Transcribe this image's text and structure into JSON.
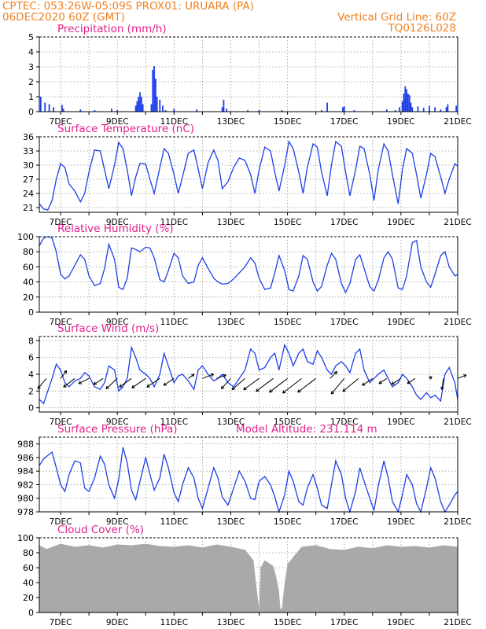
{
  "header": {
    "line1_left": "CPTEC:   053:26W-05:09S   PROX01: URUARA (PA)",
    "line2_left": "06DEC2020 60Z (GMT)",
    "line2_right": "Vertical Grid Line: 60Z",
    "line3_right": "TQ0126L028"
  },
  "colors": {
    "header": "#f08020",
    "title": "#e0208c",
    "series": "#1f3fe8",
    "cloud": "#a9a9a9",
    "grid": "#9a9a9a"
  },
  "x_tick_labels": [
    "7DEC",
    "9DEC",
    "11DEC",
    "13DEC",
    "15DEC",
    "17DEC",
    "19DEC",
    "21DEC"
  ],
  "chart_data": [
    {
      "type": "bar",
      "title": "Precipitation (mm/h)",
      "ylim": [
        0,
        5
      ],
      "yticks": [
        0,
        1,
        2,
        3,
        4,
        5
      ],
      "grid": true,
      "xlim_days": [
        6.25,
        21
      ],
      "x": [
        6.3,
        6.45,
        6.6,
        6.75,
        7.05,
        7.1,
        7.7,
        8.2,
        8.8,
        9.0,
        9.65,
        9.7,
        9.75,
        9.8,
        9.85,
        9.9,
        10.2,
        10.25,
        10.3,
        10.35,
        10.4,
        10.5,
        10.6,
        10.7,
        11.0,
        11.8,
        12.7,
        12.75,
        12.85,
        13.6,
        14.0,
        14.8,
        16.2,
        16.4,
        16.95,
        17.0,
        17.35,
        18.5,
        18.8,
        18.95,
        19.05,
        19.1,
        19.15,
        19.2,
        19.25,
        19.3,
        19.35,
        19.4,
        19.6,
        19.8,
        20.0,
        20.2,
        20.4,
        20.6,
        20.65,
        20.95
      ],
      "values": [
        1.0,
        0.6,
        0.5,
        0.3,
        0.45,
        0.2,
        0.15,
        0.1,
        0.2,
        0.1,
        0.4,
        0.7,
        1.0,
        1.3,
        1.0,
        0.5,
        0.5,
        2.8,
        3.05,
        2.2,
        1.0,
        0.8,
        0.4,
        0.1,
        0.2,
        0.15,
        0.3,
        0.8,
        0.2,
        0.1,
        0.1,
        0.1,
        0.1,
        0.6,
        0.3,
        0.35,
        0.1,
        0.15,
        0.1,
        0.3,
        0.7,
        1.2,
        1.7,
        1.5,
        1.2,
        1.1,
        0.6,
        0.3,
        0.35,
        0.25,
        0.4,
        0.3,
        0.15,
        0.3,
        0.5,
        0.4
      ]
    },
    {
      "type": "line",
      "title": "Surface Temperature (nC)",
      "ylim": [
        20,
        36
      ],
      "yticks": [
        21,
        24,
        27,
        30,
        33,
        36
      ],
      "grid": true,
      "x": [
        6.25,
        6.4,
        6.55,
        6.7,
        6.85,
        7.0,
        7.15,
        7.3,
        7.5,
        7.7,
        7.85,
        8.0,
        8.2,
        8.4,
        8.55,
        8.7,
        8.9,
        9.05,
        9.2,
        9.35,
        9.5,
        9.65,
        9.8,
        10.0,
        10.15,
        10.3,
        10.5,
        10.65,
        10.8,
        11.0,
        11.15,
        11.3,
        11.5,
        11.7,
        11.85,
        12.0,
        12.2,
        12.4,
        12.55,
        12.7,
        12.9,
        13.1,
        13.3,
        13.5,
        13.7,
        13.85,
        14.0,
        14.2,
        14.4,
        14.55,
        14.7,
        14.9,
        15.05,
        15.2,
        15.4,
        15.55,
        15.7,
        15.9,
        16.05,
        16.2,
        16.4,
        16.55,
        16.7,
        16.9,
        17.05,
        17.2,
        17.4,
        17.55,
        17.7,
        17.9,
        18.05,
        18.2,
        18.4,
        18.55,
        18.7,
        18.9,
        19.05,
        19.2,
        19.4,
        19.55,
        19.7,
        19.9,
        20.05,
        20.2,
        20.4,
        20.55,
        20.7,
        20.9,
        21.0
      ],
      "values": [
        21.8,
        20.7,
        20.5,
        22.5,
        27,
        30.3,
        29.5,
        26,
        24.5,
        22.2,
        24,
        28.5,
        33.2,
        33,
        29,
        25,
        30,
        34.8,
        33.5,
        29,
        23.5,
        27.5,
        30.4,
        30.2,
        27,
        24,
        29.5,
        33.5,
        32.5,
        28,
        24,
        27.5,
        32.5,
        33.2,
        29.2,
        25,
        30.5,
        33.2,
        31,
        25,
        26.5,
        29.5,
        31.5,
        31,
        28,
        24,
        29,
        33.8,
        33,
        28.5,
        24.5,
        30,
        35,
        33.5,
        28.5,
        24,
        29.5,
        34.5,
        33.8,
        28.5,
        23.5,
        30,
        35,
        34,
        28.5,
        23.5,
        29,
        34,
        33.5,
        28,
        22.5,
        29,
        34.5,
        33,
        28,
        21.8,
        29,
        33.5,
        32.5,
        28,
        23,
        28,
        32.5,
        31.8,
        27.5,
        24,
        27,
        30.3,
        29.8
      ]
    },
    {
      "type": "line",
      "title": "Relative Humidity (%)",
      "ylim": [
        0,
        100
      ],
      "yticks": [
        0,
        20,
        40,
        60,
        80,
        100
      ],
      "grid": true,
      "x": [
        6.25,
        6.4,
        6.55,
        6.7,
        6.85,
        7.0,
        7.15,
        7.3,
        7.5,
        7.7,
        7.85,
        8.0,
        8.2,
        8.4,
        8.55,
        8.7,
        8.9,
        9.05,
        9.2,
        9.35,
        9.5,
        9.65,
        9.8,
        10.0,
        10.15,
        10.3,
        10.5,
        10.65,
        10.8,
        11.0,
        11.15,
        11.3,
        11.5,
        11.7,
        11.85,
        12.0,
        12.2,
        12.4,
        12.55,
        12.7,
        12.9,
        13.1,
        13.3,
        13.5,
        13.7,
        13.85,
        14.0,
        14.2,
        14.4,
        14.55,
        14.7,
        14.9,
        15.05,
        15.2,
        15.4,
        15.55,
        15.7,
        15.9,
        16.05,
        16.2,
        16.4,
        16.55,
        16.7,
        16.9,
        17.05,
        17.2,
        17.4,
        17.55,
        17.7,
        17.9,
        18.05,
        18.2,
        18.4,
        18.55,
        18.7,
        18.9,
        19.05,
        19.2,
        19.4,
        19.55,
        19.7,
        19.9,
        20.05,
        20.2,
        20.4,
        20.55,
        20.7,
        20.9,
        21.0
      ],
      "values": [
        88,
        98,
        100,
        98,
        80,
        50,
        44,
        48,
        62,
        76,
        70,
        48,
        35,
        38,
        58,
        90,
        70,
        33,
        30,
        45,
        85,
        83,
        80,
        86,
        85,
        72,
        43,
        40,
        55,
        78,
        72,
        48,
        38,
        40,
        62,
        72,
        58,
        45,
        40,
        37,
        38,
        44,
        52,
        60,
        72,
        65,
        45,
        30,
        32,
        52,
        75,
        55,
        30,
        28,
        48,
        75,
        70,
        40,
        28,
        34,
        62,
        78,
        70,
        38,
        26,
        38,
        70,
        76,
        58,
        34,
        28,
        42,
        72,
        80,
        70,
        32,
        30,
        48,
        92,
        95,
        60,
        40,
        33,
        50,
        75,
        80,
        60,
        48,
        50
      ]
    },
    {
      "type": "line",
      "title": "Surface Wind (m/s)",
      "ylim": [
        -0.5,
        8.5
      ],
      "yticks": [
        0,
        2,
        4,
        6,
        8
      ],
      "grid": true,
      "x": [
        6.25,
        6.4,
        6.55,
        6.7,
        6.85,
        7.0,
        7.15,
        7.3,
        7.5,
        7.7,
        7.85,
        8.0,
        8.2,
        8.4,
        8.55,
        8.7,
        8.9,
        9.05,
        9.2,
        9.35,
        9.5,
        9.65,
        9.8,
        10.0,
        10.15,
        10.3,
        10.5,
        10.65,
        10.8,
        11.0,
        11.15,
        11.3,
        11.5,
        11.7,
        11.85,
        12.0,
        12.2,
        12.4,
        12.55,
        12.7,
        12.9,
        13.1,
        13.3,
        13.5,
        13.7,
        13.85,
        14.0,
        14.2,
        14.4,
        14.55,
        14.7,
        14.9,
        15.05,
        15.2,
        15.4,
        15.55,
        15.7,
        15.9,
        16.05,
        16.2,
        16.4,
        16.55,
        16.7,
        16.9,
        17.05,
        17.2,
        17.4,
        17.55,
        17.7,
        17.9,
        18.05,
        18.2,
        18.4,
        18.55,
        18.7,
        18.9,
        19.05,
        19.2,
        19.4,
        19.55,
        19.7,
        19.9,
        20.05,
        20.2,
        20.4,
        20.55,
        20.7,
        20.9,
        21.0
      ],
      "values": [
        1.0,
        0.5,
        2.0,
        3.5,
        5.2,
        4.5,
        3.0,
        2.5,
        3.2,
        3.5,
        4.2,
        3.8,
        2.5,
        2.2,
        3.0,
        5.0,
        4.5,
        2.0,
        2.5,
        3.5,
        7.2,
        6.0,
        4.5,
        4.0,
        3.5,
        2.5,
        4.0,
        6.5,
        5.0,
        3.0,
        3.8,
        4.0,
        3.2,
        2.2,
        4.5,
        5.0,
        4.0,
        3.2,
        3.5,
        4.0,
        3.0,
        2.5,
        3.5,
        4.5,
        7.0,
        6.5,
        4.5,
        4.8,
        6.0,
        6.5,
        4.5,
        7.5,
        6.5,
        5.0,
        6.5,
        7.0,
        5.5,
        5.2,
        6.8,
        6.0,
        4.5,
        4.0,
        5.0,
        5.5,
        5.0,
        4.2,
        6.5,
        7.0,
        4.5,
        3.0,
        3.5,
        4.0,
        4.5,
        3.5,
        2.5,
        3.0,
        4.0,
        3.5,
        2.5,
        1.5,
        1.0,
        1.8,
        1.2,
        1.5,
        0.8,
        4.0,
        4.8,
        3.0,
        1.0
      ],
      "arrows": [
        {
          "x": 6.5,
          "u": -1.0,
          "v": -1.2
        },
        {
          "x": 7.0,
          "u": 0.7,
          "v": 0.9
        },
        {
          "x": 7.5,
          "u": -1.3,
          "v": -1.0
        },
        {
          "x": 8.0,
          "u": -1.2,
          "v": -0.6
        },
        {
          "x": 8.5,
          "u": -1.1,
          "v": -0.7
        },
        {
          "x": 9.0,
          "u": -1.3,
          "v": -1.2
        },
        {
          "x": 9.5,
          "u": -1.4,
          "v": -1.0
        },
        {
          "x": 10.0,
          "u": -1.6,
          "v": -1.1
        },
        {
          "x": 10.5,
          "u": -1.5,
          "v": -1.0
        },
        {
          "x": 11.0,
          "u": -1.2,
          "v": -0.8
        },
        {
          "x": 11.5,
          "u": 0.7,
          "v": 0.5
        },
        {
          "x": 12.0,
          "u": 1.3,
          "v": 0.5
        },
        {
          "x": 12.5,
          "u": 1.1,
          "v": 0.4
        },
        {
          "x": 13.0,
          "u": -1.1,
          "v": -1.2
        },
        {
          "x": 13.5,
          "u": -1.5,
          "v": -1.3
        },
        {
          "x": 14.0,
          "u": -1.8,
          "v": -1.3
        },
        {
          "x": 14.5,
          "u": -2.0,
          "v": -1.5
        },
        {
          "x": 15.0,
          "u": -2.1,
          "v": -1.6
        },
        {
          "x": 15.5,
          "u": -2.2,
          "v": -1.7
        },
        {
          "x": 16.0,
          "u": -2.1,
          "v": -1.6
        },
        {
          "x": 16.5,
          "u": 0.8,
          "v": 0.8
        },
        {
          "x": 17.0,
          "u": -1.5,
          "v": -1.8
        },
        {
          "x": 17.5,
          "u": -1.8,
          "v": -1.5
        },
        {
          "x": 18.0,
          "u": -1.2,
          "v": -0.8
        },
        {
          "x": 18.5,
          "u": -0.9,
          "v": -0.6
        },
        {
          "x": 19.0,
          "u": -1.1,
          "v": -0.7
        },
        {
          "x": 19.5,
          "u": -0.9,
          "v": -0.6
        },
        {
          "x": 20.0,
          "u": 0.3,
          "v": 0.2
        },
        {
          "x": 20.5,
          "u": -0.2,
          "v": -1.3
        },
        {
          "x": 21.0,
          "u": 1.0,
          "v": 0.4
        }
      ]
    },
    {
      "type": "line",
      "title": "Surface Pressure (hPa)",
      "annotation": "Model Altitude: 231.114 m",
      "ylim": [
        978,
        989
      ],
      "yticks": [
        978,
        980,
        982,
        984,
        986,
        988
      ],
      "grid": true,
      "x": [
        6.25,
        6.4,
        6.55,
        6.7,
        6.85,
        7.0,
        7.15,
        7.3,
        7.5,
        7.7,
        7.85,
        8.0,
        8.2,
        8.4,
        8.55,
        8.7,
        8.9,
        9.05,
        9.2,
        9.35,
        9.5,
        9.65,
        9.8,
        10.0,
        10.15,
        10.3,
        10.5,
        10.65,
        10.8,
        11.0,
        11.15,
        11.3,
        11.5,
        11.7,
        11.85,
        12.0,
        12.2,
        12.4,
        12.55,
        12.7,
        12.9,
        13.1,
        13.3,
        13.5,
        13.7,
        13.85,
        14.0,
        14.2,
        14.4,
        14.55,
        14.7,
        14.9,
        15.05,
        15.2,
        15.4,
        15.55,
        15.7,
        15.9,
        16.05,
        16.2,
        16.4,
        16.55,
        16.7,
        16.9,
        17.05,
        17.2,
        17.4,
        17.55,
        17.7,
        17.9,
        18.05,
        18.2,
        18.4,
        18.55,
        18.7,
        18.9,
        19.05,
        19.2,
        19.4,
        19.55,
        19.7,
        19.9,
        20.05,
        20.2,
        20.4,
        20.55,
        20.7,
        20.9,
        21.0
      ],
      "values": [
        984.8,
        985.8,
        986.3,
        986.8,
        984.5,
        982,
        981,
        983.5,
        985.5,
        985.2,
        981.5,
        981,
        983,
        986.2,
        985,
        982,
        980,
        982.8,
        987.5,
        985.2,
        981.2,
        979.8,
        982.5,
        986,
        983.5,
        981.2,
        983,
        986.5,
        984.5,
        980.8,
        979.5,
        982,
        984.5,
        983,
        980,
        978.5,
        981.5,
        984.5,
        983,
        980.2,
        979,
        981.5,
        984,
        982.5,
        980,
        979.8,
        982.5,
        983.2,
        982,
        980.2,
        978,
        980.5,
        984,
        982.5,
        979.5,
        979,
        981.5,
        983.5,
        981.5,
        979,
        978.5,
        982,
        985.5,
        983.5,
        980,
        978,
        981,
        984.5,
        982.5,
        980,
        978.2,
        981.8,
        985.5,
        983,
        979.5,
        978,
        980.5,
        983.5,
        982,
        979.2,
        978,
        981.5,
        984.5,
        983,
        979.5,
        978,
        979,
        980.5,
        981
      ]
    },
    {
      "type": "area",
      "title": "Cloud Cover (%)",
      "ylim": [
        0,
        100
      ],
      "yticks": [
        0,
        20,
        40,
        60,
        80,
        100
      ],
      "grid": true,
      "x": [
        6.25,
        6.5,
        7.0,
        7.5,
        8.0,
        8.5,
        9.0,
        9.5,
        10.0,
        10.5,
        11.0,
        11.5,
        12.0,
        12.5,
        13.0,
        13.5,
        13.8,
        13.95,
        14.0,
        14.05,
        14.2,
        14.5,
        14.6,
        14.7,
        14.75,
        14.8,
        14.9,
        15.0,
        15.5,
        16.0,
        16.5,
        17.0,
        17.5,
        18.0,
        18.5,
        19.0,
        19.5,
        20.0,
        20.5,
        21.0
      ],
      "values": [
        90,
        85,
        92,
        88,
        90,
        87,
        91,
        90,
        92,
        89,
        88,
        90,
        87,
        91,
        88,
        84,
        70,
        20,
        5,
        60,
        70,
        62,
        48,
        28,
        5,
        5,
        40,
        65,
        88,
        90,
        85,
        84,
        88,
        86,
        90,
        88,
        89,
        87,
        90,
        88
      ]
    }
  ]
}
